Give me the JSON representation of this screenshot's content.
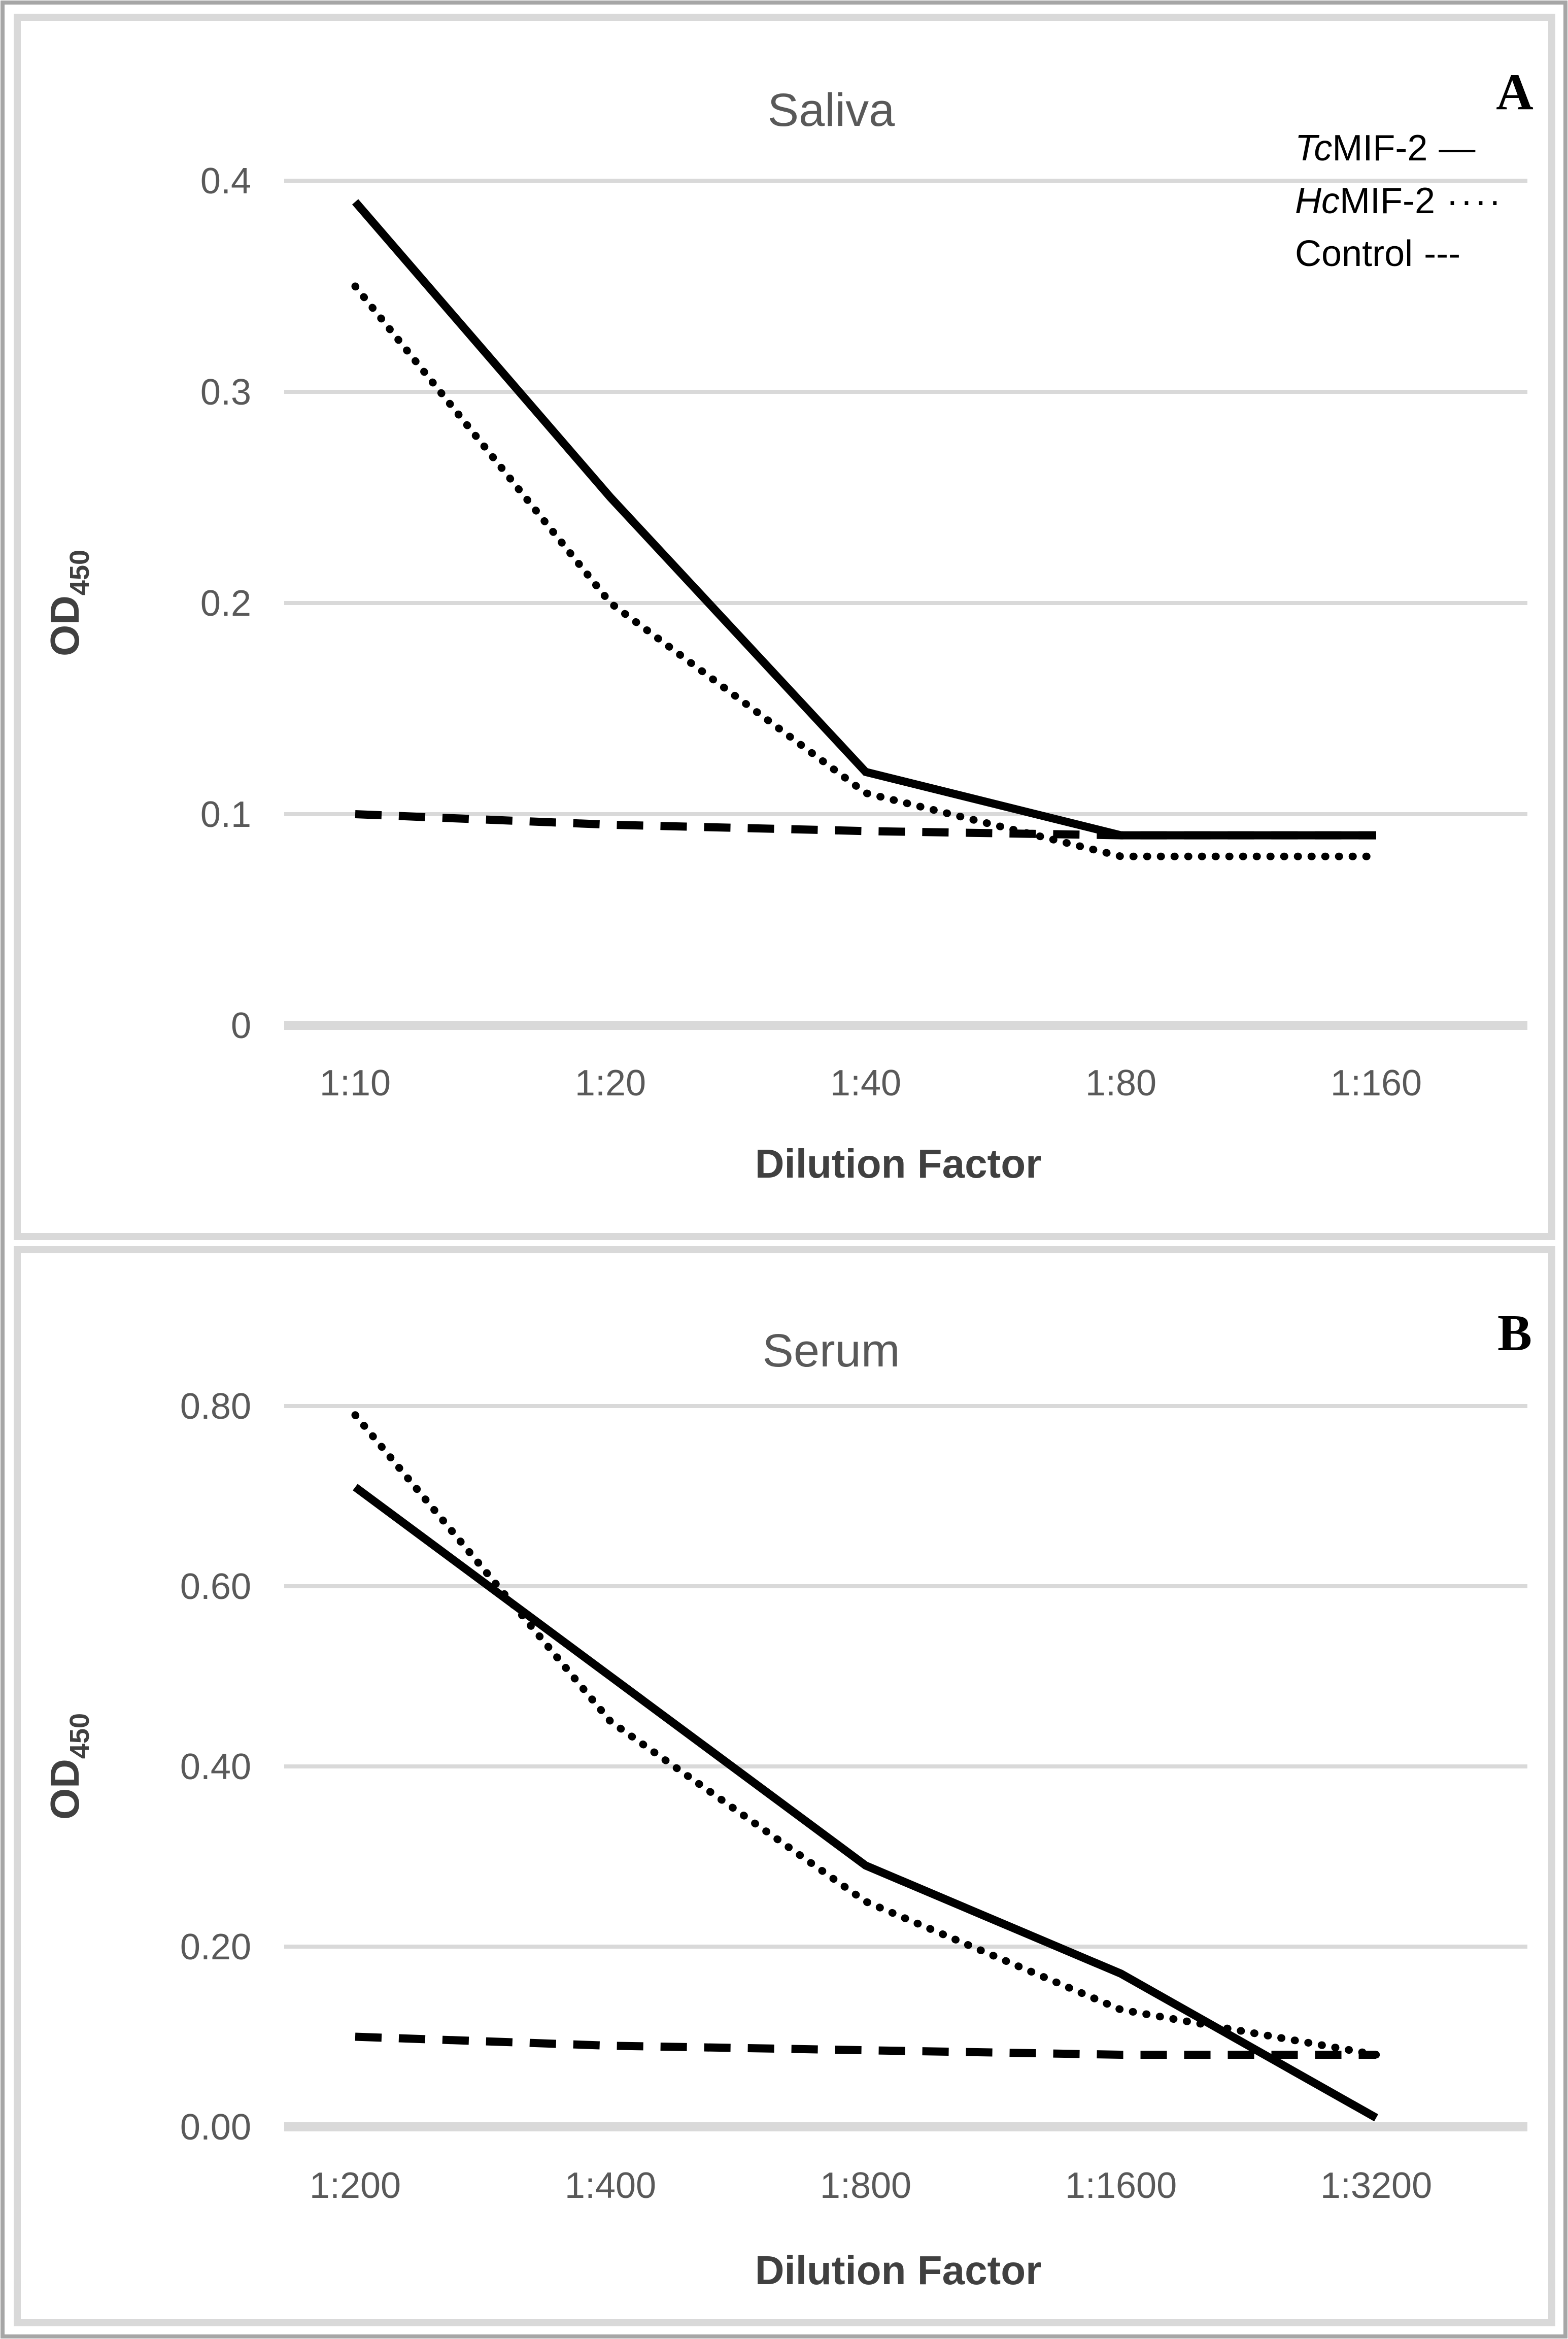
{
  "figure": {
    "panel_a": {
      "panel_label": "A",
      "title": "Saliva",
      "xlabel": "Dilution Factor",
      "ylabel_main": "OD",
      "ylabel_sub": "450",
      "legend": [
        {
          "prefix": "Tc",
          "rest": "MIF-2",
          "marker": "—"
        },
        {
          "prefix": "Hc",
          "rest": "MIF-2",
          "marker": "····"
        },
        {
          "prefix": "",
          "rest": "Control",
          "marker": "---"
        }
      ]
    },
    "panel_b": {
      "panel_label": "B",
      "title": "Serum",
      "xlabel": "Dilution Factor",
      "ylabel_main": "OD",
      "ylabel_sub": "450"
    }
  },
  "chart_data": [
    {
      "type": "line",
      "panel": "A",
      "title": "Saliva",
      "xlabel": "Dilution Factor",
      "ylabel": "OD450",
      "categories": [
        "1:10",
        "1:20",
        "1:40",
        "1:80",
        "1:160"
      ],
      "series": [
        {
          "name": "TcMIF-2",
          "dash": "solid",
          "color": "#000000",
          "values": [
            0.39,
            0.25,
            0.12,
            0.09,
            0.09
          ]
        },
        {
          "name": "HcMIF-2",
          "dash": "dotted",
          "color": "#000000",
          "values": [
            0.35,
            0.2,
            0.11,
            0.08,
            0.08
          ]
        },
        {
          "name": "Control",
          "dash": "dashed",
          "color": "#000000",
          "values": [
            0.1,
            0.095,
            0.092,
            0.09,
            0.09
          ]
        }
      ],
      "ylim": [
        0,
        0.4
      ],
      "yticks": [
        {
          "value": 0.4,
          "label": "0.4"
        },
        {
          "value": 0.3,
          "label": "0.3"
        },
        {
          "value": 0.2,
          "label": "0.2"
        },
        {
          "value": 0.1,
          "label": "0.1"
        },
        {
          "value": 0,
          "label": "0"
        }
      ],
      "grid": true,
      "legend_position": "top-right"
    },
    {
      "type": "line",
      "panel": "B",
      "title": "Serum",
      "xlabel": "Dilution Factor",
      "ylabel": "OD450",
      "categories": [
        "1:200",
        "1:400",
        "1:800",
        "1:1600",
        "1:3200"
      ],
      "series": [
        {
          "name": "TcMIF-2",
          "dash": "solid",
          "color": "#000000",
          "values": [
            0.71,
            0.5,
            0.29,
            0.17,
            0.01
          ]
        },
        {
          "name": "HcMIF-2",
          "dash": "dotted",
          "color": "#000000",
          "values": [
            0.79,
            0.45,
            0.25,
            0.13,
            0.08
          ]
        },
        {
          "name": "Control",
          "dash": "dashed",
          "color": "#000000",
          "values": [
            0.1,
            0.09,
            0.085,
            0.08,
            0.08
          ]
        }
      ],
      "ylim": [
        0,
        0.8
      ],
      "yticks": [
        {
          "value": 0.8,
          "label": "0.80"
        },
        {
          "value": 0.6,
          "label": "0.60"
        },
        {
          "value": 0.4,
          "label": "0.40"
        },
        {
          "value": 0.2,
          "label": "0.20"
        },
        {
          "value": 0,
          "label": "0.00"
        }
      ],
      "grid": true,
      "legend_position": "none"
    }
  ],
  "colors": {
    "text_gray": "#595959",
    "axis_title_gray": "#404040",
    "gridline": "#d9d9d9",
    "panel_border": "#d9d9d9",
    "outer_border": "#a6a6a6",
    "series_black": "#000000"
  }
}
